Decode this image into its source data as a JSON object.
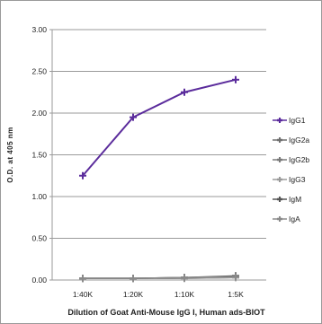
{
  "chart_data": {
    "type": "line",
    "title": "",
    "xlabel": "Dilution of Goat Anti-Mouse IgG I, Human ads-BIOT",
    "ylabel": "O.D. at 405 nm",
    "categories": [
      "1:40K",
      "1:20K",
      "1:10K",
      "1:5K"
    ],
    "yticks": [
      "0.00",
      "0.50",
      "1.00",
      "1.50",
      "2.00",
      "2.50",
      "3.00"
    ],
    "ylim": [
      0,
      3
    ],
    "grid": true,
    "legend_position": "right",
    "series": [
      {
        "name": "IgG1",
        "values": [
          1.25,
          1.95,
          2.25,
          2.4
        ],
        "color": "#5b2c9c"
      },
      {
        "name": "IgG2a",
        "values": [
          0.02,
          0.02,
          0.02,
          0.03
        ],
        "color": "#6f6f6f"
      },
      {
        "name": "IgG2b",
        "values": [
          0.02,
          0.02,
          0.03,
          0.04
        ],
        "color": "#7a7a7a"
      },
      {
        "name": "IgG3",
        "values": [
          0.02,
          0.02,
          0.02,
          0.03
        ],
        "color": "#9a9a9a"
      },
      {
        "name": "IgM",
        "values": [
          0.02,
          0.02,
          0.03,
          0.05
        ],
        "color": "#555555"
      },
      {
        "name": "IgA",
        "values": [
          0.02,
          0.02,
          0.03,
          0.04
        ],
        "color": "#8a8a8a"
      }
    ]
  }
}
